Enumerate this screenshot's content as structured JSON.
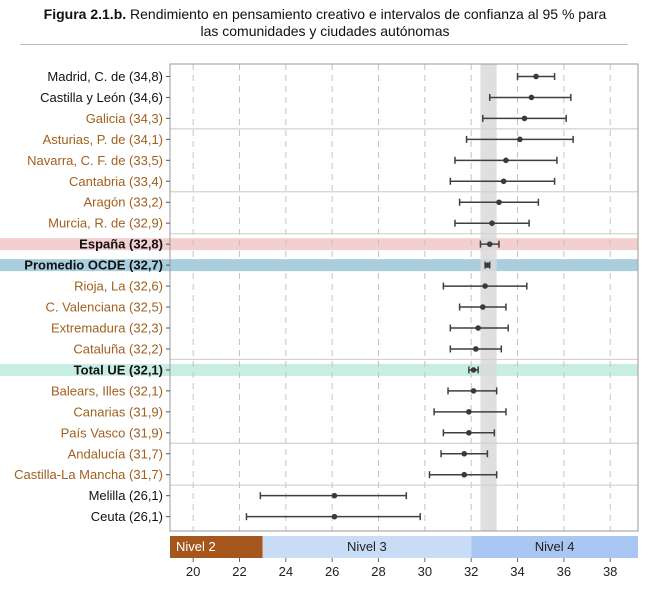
{
  "header": {
    "figure_label": "Figura 2.1.b.",
    "title_line1": "Rendimiento en pensamiento creativo e intervalos de confianza al 95 % para",
    "title_line2": "las comunidades y ciudades autónomas"
  },
  "colors": {
    "orange_label": "#a0601f",
    "black_label": "#111111",
    "espana_band": "#f4cfcf",
    "ocde_band": "#a9cedd",
    "ue_band": "#c8eee3",
    "ocde_mean_band": "#d9d9d9",
    "nivel2": "#a5561c",
    "nivel3": "#c9dcf5",
    "nivel4": "#a9c7f2"
  },
  "chart_data": {
    "type": "scatter",
    "subtype": "dot-with-error-bars",
    "title": "Rendimiento en pensamiento creativo e intervalos de confianza al 95 % para las comunidades y ciudades autónomas",
    "xlim": [
      19,
      39.2
    ],
    "x_ticks": [
      20,
      22,
      24,
      26,
      28,
      30,
      32,
      34,
      36,
      38
    ],
    "grid": true,
    "reference_band": {
      "from": 32.4,
      "to": 33.1
    },
    "rows": [
      {
        "label": "Madrid, C. de (34,8)",
        "value": 34.8,
        "lo": 34.0,
        "hi": 35.6,
        "style": "black",
        "band": ""
      },
      {
        "label": "Castilla y León (34,6)",
        "value": 34.6,
        "lo": 32.8,
        "hi": 36.3,
        "style": "black",
        "band": ""
      },
      {
        "label": "Galicia (34,3)",
        "value": 34.3,
        "lo": 32.5,
        "hi": 36.1,
        "style": "orange",
        "band": ""
      },
      {
        "label": "Asturias, P. de (34,1)",
        "value": 34.1,
        "lo": 31.8,
        "hi": 36.4,
        "style": "orange",
        "band": ""
      },
      {
        "label": "Navarra, C. F. de (33,5)",
        "value": 33.5,
        "lo": 31.3,
        "hi": 35.7,
        "style": "orange",
        "band": ""
      },
      {
        "label": "Cantabria (33,4)",
        "value": 33.4,
        "lo": 31.1,
        "hi": 35.6,
        "style": "orange",
        "band": ""
      },
      {
        "label": "Aragón (33,2)",
        "value": 33.2,
        "lo": 31.5,
        "hi": 34.9,
        "style": "orange",
        "band": ""
      },
      {
        "label": "Murcia, R. de (32,9)",
        "value": 32.9,
        "lo": 31.3,
        "hi": 34.5,
        "style": "orange",
        "band": ""
      },
      {
        "label": "España (32,8)",
        "value": 32.8,
        "lo": 32.4,
        "hi": 33.2,
        "style": "bold",
        "band": "espana"
      },
      {
        "label": "Promedio OCDE (32,7)",
        "value": 32.7,
        "lo": 32.6,
        "hi": 32.8,
        "style": "bold",
        "band": "ocde"
      },
      {
        "label": "Rioja, La (32,6)",
        "value": 32.6,
        "lo": 30.8,
        "hi": 34.4,
        "style": "orange",
        "band": ""
      },
      {
        "label": "C. Valenciana (32,5)",
        "value": 32.5,
        "lo": 31.5,
        "hi": 33.5,
        "style": "orange",
        "band": ""
      },
      {
        "label": "Extremadura (32,3)",
        "value": 32.3,
        "lo": 31.1,
        "hi": 33.6,
        "style": "orange",
        "band": ""
      },
      {
        "label": "Cataluña (32,2)",
        "value": 32.2,
        "lo": 31.1,
        "hi": 33.3,
        "style": "orange",
        "band": ""
      },
      {
        "label": "Total UE (32,1)",
        "value": 32.1,
        "lo": 31.9,
        "hi": 32.3,
        "style": "bold",
        "band": "ue"
      },
      {
        "label": "Balears, Illes (32,1)",
        "value": 32.1,
        "lo": 31.0,
        "hi": 33.1,
        "style": "orange",
        "band": ""
      },
      {
        "label": "Canarias (31,9)",
        "value": 31.9,
        "lo": 30.4,
        "hi": 33.5,
        "style": "orange",
        "band": ""
      },
      {
        "label": "País Vasco (31,9)",
        "value": 31.9,
        "lo": 30.8,
        "hi": 33.0,
        "style": "orange",
        "band": ""
      },
      {
        "label": "Andalucía (31,7)",
        "value": 31.7,
        "lo": 30.7,
        "hi": 32.7,
        "style": "orange",
        "band": ""
      },
      {
        "label": "Castilla-La Mancha (31,7)",
        "value": 31.7,
        "lo": 30.2,
        "hi": 33.1,
        "style": "orange",
        "band": ""
      },
      {
        "label": "Melilla (26,1)",
        "value": 26.1,
        "lo": 22.9,
        "hi": 29.2,
        "style": "black",
        "band": ""
      },
      {
        "label": "Ceuta (26,1)",
        "value": 26.1,
        "lo": 22.3,
        "hi": 29.8,
        "style": "black",
        "band": ""
      }
    ],
    "group_separators_after": [
      2,
      5,
      7,
      13,
      17,
      19
    ],
    "levels": [
      {
        "label": "Nivel 2",
        "from": 19,
        "to": 23,
        "color": "#a5561c",
        "text_color": "#ffffff",
        "text_align": "left"
      },
      {
        "label": "Nivel 3",
        "from": 23,
        "to": 32,
        "color": "#c9dcf5",
        "text_color": "#222222",
        "text_align": "center"
      },
      {
        "label": "Nivel 4",
        "from": 32,
        "to": 39.2,
        "color": "#a9c7f2",
        "text_color": "#222222",
        "text_align": "center"
      }
    ]
  }
}
